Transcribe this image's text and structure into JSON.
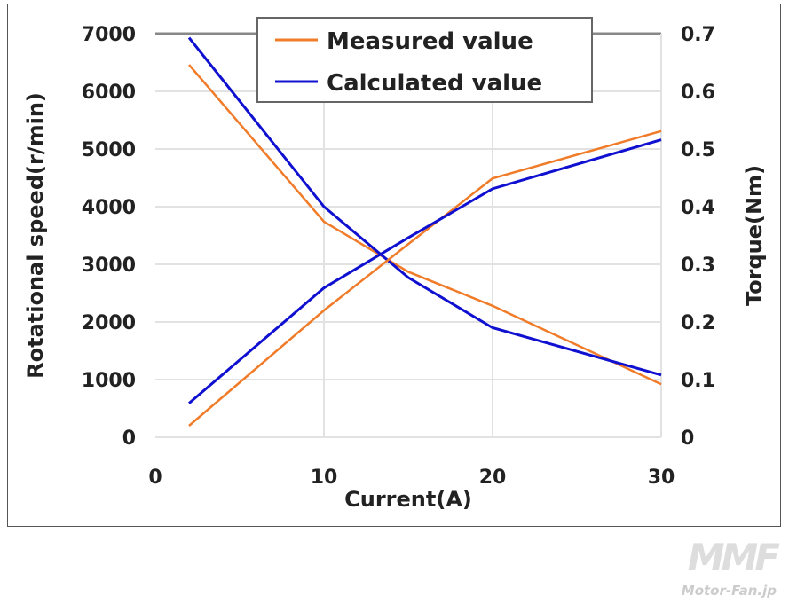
{
  "chart_data": {
    "type": "line",
    "xlabel": "Current(A)",
    "ylabel": "Rotational speed(r/min)",
    "y2label": "Torque(Nm)",
    "xlim": [
      0,
      30
    ],
    "ylim": [
      0,
      7000
    ],
    "y2lim": [
      0,
      0.7
    ],
    "xticks": [
      "0",
      "10",
      "20",
      "30"
    ],
    "yticks": [
      "0",
      "1000",
      "2000",
      "3000",
      "4000",
      "5000",
      "6000",
      "7000"
    ],
    "y2ticks": [
      "0",
      "0.1",
      "0.2",
      "0.3",
      "0.4",
      "0.5",
      "0.6",
      "0.7"
    ],
    "x": [
      2,
      10,
      15,
      20,
      30
    ],
    "grid": true,
    "legend_position": "top-center",
    "legend": [
      "Measured value",
      "Calculated value"
    ],
    "series": [
      {
        "name": "Measured value",
        "axis": "left",
        "quantity": "speed",
        "color": "#f07c2a",
        "values": [
          6460,
          3740,
          2870,
          2280,
          920
        ]
      },
      {
        "name": "Calculated value",
        "axis": "left",
        "quantity": "speed",
        "color": "#1010d0",
        "values": [
          6930,
          4000,
          2770,
          1900,
          1080
        ]
      },
      {
        "name": "Measured value",
        "axis": "right",
        "quantity": "torque",
        "color": "#f07c2a",
        "values": [
          0.02,
          0.22,
          0.335,
          0.449,
          0.531
        ]
      },
      {
        "name": "Calculated value",
        "axis": "right",
        "quantity": "torque",
        "color": "#1010d0",
        "values": [
          0.059,
          0.259,
          0.346,
          0.431,
          0.516
        ]
      }
    ]
  },
  "watermark": "Motor-Fan.jp"
}
